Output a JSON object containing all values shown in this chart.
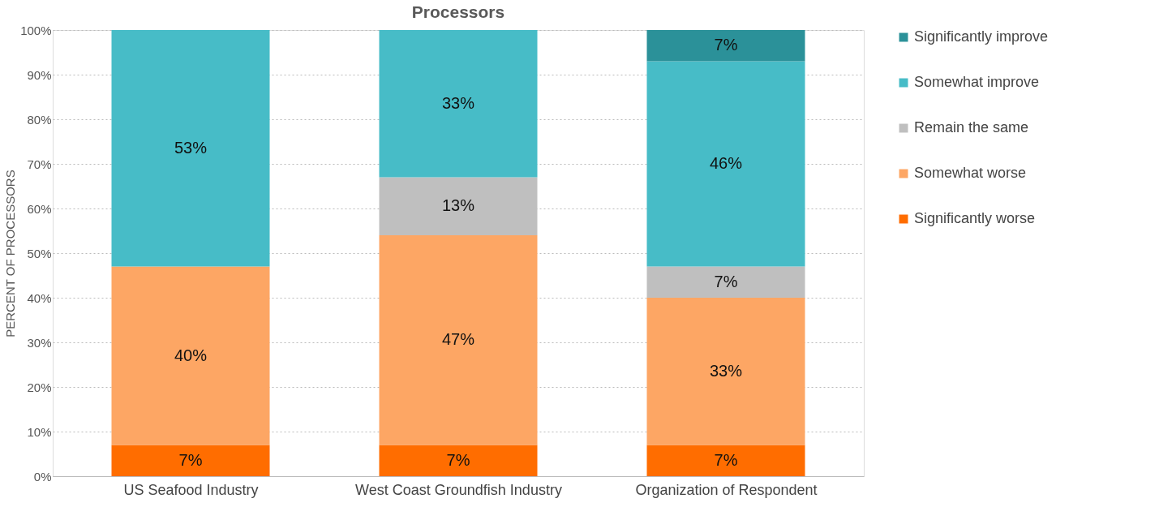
{
  "chart_data": {
    "type": "bar",
    "title": "Processors",
    "ylabel": "PERCENT OF PROCESSORS",
    "stacked": true,
    "categories": [
      "US Seafood Industry",
      "West Coast Groundfish Industry",
      "Organization of Respondent"
    ],
    "series": [
      {
        "name": "Significantly worse",
        "color": "#ff6d00",
        "values": [
          7,
          7,
          7
        ],
        "value_labels": [
          "7%",
          "7%",
          "7%"
        ]
      },
      {
        "name": "Somewhat worse",
        "color": "#fda664",
        "values": [
          40,
          47,
          33
        ],
        "value_labels": [
          "40%",
          "47%",
          "33%"
        ]
      },
      {
        "name": "Remain the same",
        "color": "#bfbfbf",
        "values": [
          null,
          13,
          7
        ],
        "value_labels": [
          null,
          "13%",
          "7%"
        ]
      },
      {
        "name": "Somewhat improve",
        "color": "#47bcc7",
        "values": [
          53,
          33,
          46
        ],
        "value_labels": [
          "53%",
          "33%",
          "46%"
        ]
      },
      {
        "name": "Significantly improve",
        "color": "#2b9199",
        "values": [
          null,
          null,
          7
        ],
        "value_labels": [
          null,
          null,
          "7%"
        ]
      }
    ],
    "ylim": [
      0,
      100
    ],
    "yticks": [
      {
        "value": 0,
        "label": "0%"
      },
      {
        "value": 10,
        "label": "10%"
      },
      {
        "value": 20,
        "label": "20%"
      },
      {
        "value": 30,
        "label": "30%"
      },
      {
        "value": 40,
        "label": "40%"
      },
      {
        "value": 50,
        "label": "50%"
      },
      {
        "value": 60,
        "label": "60%"
      },
      {
        "value": 70,
        "label": "70%"
      },
      {
        "value": 80,
        "label": "80%"
      },
      {
        "value": 90,
        "label": "90%"
      },
      {
        "value": 100,
        "label": "100%"
      }
    ],
    "grid": "y",
    "legend": "right"
  }
}
